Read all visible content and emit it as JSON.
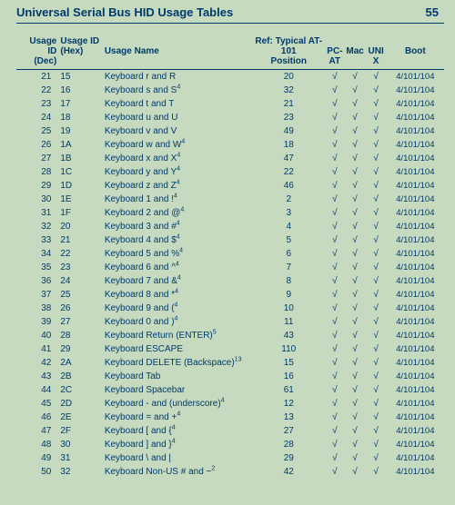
{
  "header": {
    "title": "Universal Serial Bus HID Usage Tables",
    "page_number": "55"
  },
  "table": {
    "columns": {
      "dec_l1": "Usage ID",
      "dec_l2": "(Dec)",
      "hex_l1": "Usage ID",
      "hex_l2": "(Hex)",
      "name": "Usage Name",
      "ref_l1": "Ref: Typical AT-101",
      "ref_l2": "Position",
      "pc_l1": "PC-",
      "pc_l2": "AT",
      "mac": "Mac",
      "unix_l1": "UNI",
      "unix_l2": "X",
      "boot": "Boot"
    },
    "rows": [
      {
        "dec": "21",
        "hex": "15",
        "name": "Keyboard r and R",
        "sup": "",
        "pos": "20",
        "boot": "4/101/104"
      },
      {
        "dec": "22",
        "hex": "16",
        "name": "Keyboard s and S",
        "sup": "4",
        "pos": "32",
        "boot": "4/101/104"
      },
      {
        "dec": "23",
        "hex": "17",
        "name": "Keyboard t and T",
        "sup": "",
        "pos": "21",
        "boot": "4/101/104"
      },
      {
        "dec": "24",
        "hex": "18",
        "name": "Keyboard u and U",
        "sup": "",
        "pos": "23",
        "boot": "4/101/104"
      },
      {
        "dec": "25",
        "hex": "19",
        "name": "Keyboard v and V",
        "sup": "",
        "pos": "49",
        "boot": "4/101/104"
      },
      {
        "dec": "26",
        "hex": "1A",
        "name": "Keyboard w and W",
        "sup": "4",
        "pos": "18",
        "boot": "4/101/104"
      },
      {
        "dec": "27",
        "hex": "1B",
        "name": "Keyboard x and X",
        "sup": "4",
        "pos": "47",
        "boot": "4/101/104"
      },
      {
        "dec": "28",
        "hex": "1C",
        "name": "Keyboard y and Y",
        "sup": "4",
        "pos": "22",
        "boot": "4/101/104"
      },
      {
        "dec": "29",
        "hex": "1D",
        "name": "Keyboard z and Z",
        "sup": "4",
        "pos": "46",
        "boot": "4/101/104"
      },
      {
        "dec": "30",
        "hex": "1E",
        "name": "Keyboard 1 and !",
        "sup": "4",
        "pos": "2",
        "boot": "4/101/104"
      },
      {
        "dec": "31",
        "hex": "1F",
        "name": "Keyboard 2 and @",
        "sup": "4",
        "pos": "3",
        "boot": "4/101/104"
      },
      {
        "dec": "32",
        "hex": "20",
        "name": "Keyboard 3 and #",
        "sup": "4",
        "pos": "4",
        "boot": "4/101/104"
      },
      {
        "dec": "33",
        "hex": "21",
        "name": "Keyboard 4 and $",
        "sup": "4",
        "pos": "5",
        "boot": "4/101/104"
      },
      {
        "dec": "34",
        "hex": "22",
        "name": "Keyboard 5 and %",
        "sup": "4",
        "pos": "6",
        "boot": "4/101/104"
      },
      {
        "dec": "35",
        "hex": "23",
        "name": "Keyboard 6 and ^",
        "sup": "4",
        "pos": "7",
        "boot": "4/101/104"
      },
      {
        "dec": "36",
        "hex": "24",
        "name": "Keyboard 7 and &",
        "sup": "4",
        "pos": "8",
        "boot": "4/101/104"
      },
      {
        "dec": "37",
        "hex": "25",
        "name": "Keyboard 8 and *",
        "sup": "4",
        "pos": "9",
        "boot": "4/101/104"
      },
      {
        "dec": "38",
        "hex": "26",
        "name": "Keyboard 9 and (",
        "sup": "4",
        "pos": "10",
        "boot": "4/101/104"
      },
      {
        "dec": "39",
        "hex": "27",
        "name": "Keyboard 0 and )",
        "sup": "4",
        "pos": "11",
        "boot": "4/101/104"
      },
      {
        "dec": "40",
        "hex": "28",
        "name": "Keyboard Return (ENTER)",
        "sup": "5",
        "pos": "43",
        "boot": "4/101/104"
      },
      {
        "dec": "41",
        "hex": "29",
        "name": "Keyboard ESCAPE",
        "sup": "",
        "pos": "110",
        "boot": "4/101/104"
      },
      {
        "dec": "42",
        "hex": "2A",
        "name": "Keyboard DELETE (Backspace)",
        "sup": "13",
        "pos": "15",
        "boot": "4/101/104"
      },
      {
        "dec": "43",
        "hex": "2B",
        "name": "Keyboard Tab",
        "sup": "",
        "pos": "16",
        "boot": "4/101/104"
      },
      {
        "dec": "44",
        "hex": "2C",
        "name": "Keyboard Spacebar",
        "sup": "",
        "pos": "61",
        "boot": "4/101/104"
      },
      {
        "dec": "45",
        "hex": "2D",
        "name": "Keyboard - and (underscore)",
        "sup": "4",
        "pos": "12",
        "boot": "4/101/104"
      },
      {
        "dec": "46",
        "hex": "2E",
        "name": "Keyboard = and +",
        "sup": "4",
        "pos": "13",
        "boot": "4/101/104"
      },
      {
        "dec": "47",
        "hex": "2F",
        "name": "Keyboard [ and {",
        "sup": "4",
        "pos": "27",
        "boot": "4/101/104"
      },
      {
        "dec": "48",
        "hex": "30",
        "name": "Keyboard ] and }",
        "sup": "4",
        "pos": "28",
        "boot": "4/101/104"
      },
      {
        "dec": "49",
        "hex": "31",
        "name": "Keyboard \\ and |",
        "sup": "",
        "pos": "29",
        "boot": "4/101/104"
      },
      {
        "dec": "50",
        "hex": "32",
        "name": "Keyboard Non-US # and ~",
        "sup": "2",
        "pos": "42",
        "boot": "4/101/104"
      }
    ],
    "check": "√"
  }
}
